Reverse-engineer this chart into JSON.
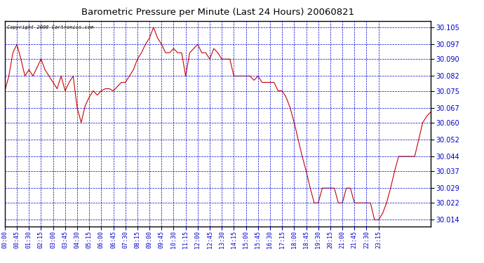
{
  "title": "Barometric Pressure per Minute (Last 24 Hours) 20060821",
  "copyright": "Copyright 2006 Cartronics.com",
  "line_color": "#cc0000",
  "bg_color": "#ffffff",
  "plot_bg_color": "#ffffff",
  "grid_color": "#0000cc",
  "axis_label_color": "#0000cc",
  "title_color": "#000000",
  "yticks": [
    30.014,
    30.022,
    30.029,
    30.037,
    30.044,
    30.052,
    30.06,
    30.067,
    30.075,
    30.082,
    30.09,
    30.097,
    30.105
  ],
  "ylim": [
    30.011,
    30.108
  ],
  "xtick_labels": [
    "00:00",
    "00:45",
    "01:30",
    "02:15",
    "03:00",
    "03:45",
    "04:30",
    "05:15",
    "06:00",
    "06:45",
    "07:30",
    "08:15",
    "09:00",
    "09:45",
    "10:30",
    "11:15",
    "12:00",
    "12:45",
    "13:30",
    "14:15",
    "15:00",
    "15:45",
    "16:30",
    "17:15",
    "18:00",
    "18:45",
    "19:30",
    "20:15",
    "21:00",
    "21:45",
    "22:30",
    "23:15"
  ],
  "pressure_data": [
    [
      0,
      30.075
    ],
    [
      15,
      30.082
    ],
    [
      30,
      30.093
    ],
    [
      45,
      30.097
    ],
    [
      60,
      30.09
    ],
    [
      75,
      30.082
    ],
    [
      90,
      30.085
    ],
    [
      105,
      30.082
    ],
    [
      120,
      30.086
    ],
    [
      135,
      30.09
    ],
    [
      150,
      30.085
    ],
    [
      165,
      30.082
    ],
    [
      180,
      30.079
    ],
    [
      195,
      30.076
    ],
    [
      210,
      30.082
    ],
    [
      225,
      30.075
    ],
    [
      240,
      30.079
    ],
    [
      255,
      30.082
    ],
    [
      270,
      30.067
    ],
    [
      285,
      30.06
    ],
    [
      300,
      30.068
    ],
    [
      315,
      30.072
    ],
    [
      330,
      30.075
    ],
    [
      345,
      30.073
    ],
    [
      360,
      30.075
    ],
    [
      375,
      30.076
    ],
    [
      390,
      30.076
    ],
    [
      405,
      30.075
    ],
    [
      420,
      30.077
    ],
    [
      435,
      30.079
    ],
    [
      450,
      30.079
    ],
    [
      465,
      30.082
    ],
    [
      480,
      30.085
    ],
    [
      495,
      30.09
    ],
    [
      510,
      30.093
    ],
    [
      525,
      30.097
    ],
    [
      540,
      30.1
    ],
    [
      555,
      30.105
    ],
    [
      570,
      30.1
    ],
    [
      585,
      30.097
    ],
    [
      600,
      30.093
    ],
    [
      615,
      30.093
    ],
    [
      630,
      30.095
    ],
    [
      645,
      30.093
    ],
    [
      660,
      30.093
    ],
    [
      675,
      30.082
    ],
    [
      690,
      30.093
    ],
    [
      705,
      30.095
    ],
    [
      720,
      30.097
    ],
    [
      735,
      30.093
    ],
    [
      750,
      30.093
    ],
    [
      765,
      30.09
    ],
    [
      780,
      30.095
    ],
    [
      795,
      30.093
    ],
    [
      810,
      30.09
    ],
    [
      825,
      30.09
    ],
    [
      840,
      30.09
    ],
    [
      855,
      30.082
    ],
    [
      870,
      30.082
    ],
    [
      885,
      30.082
    ],
    [
      900,
      30.082
    ],
    [
      915,
      30.082
    ],
    [
      930,
      30.08
    ],
    [
      945,
      30.082
    ],
    [
      960,
      30.079
    ],
    [
      975,
      30.079
    ],
    [
      990,
      30.079
    ],
    [
      1005,
      30.079
    ],
    [
      1020,
      30.075
    ],
    [
      1035,
      30.075
    ],
    [
      1050,
      30.072
    ],
    [
      1065,
      30.067
    ],
    [
      1080,
      30.06
    ],
    [
      1095,
      30.052
    ],
    [
      1110,
      30.044
    ],
    [
      1125,
      30.037
    ],
    [
      1140,
      30.029
    ],
    [
      1155,
      30.022
    ],
    [
      1170,
      30.022
    ],
    [
      1185,
      30.029
    ],
    [
      1200,
      30.029
    ],
    [
      1215,
      30.029
    ],
    [
      1230,
      30.029
    ],
    [
      1245,
      30.022
    ],
    [
      1260,
      30.022
    ],
    [
      1275,
      30.029
    ],
    [
      1290,
      30.029
    ],
    [
      1305,
      30.022
    ],
    [
      1320,
      30.022
    ],
    [
      1335,
      30.022
    ],
    [
      1350,
      30.022
    ],
    [
      1365,
      30.022
    ],
    [
      1380,
      30.014
    ],
    [
      1395,
      30.014
    ],
    [
      1410,
      30.017
    ],
    [
      1425,
      30.022
    ],
    [
      1440,
      30.029
    ],
    [
      1455,
      30.037
    ],
    [
      1470,
      30.044
    ],
    [
      1485,
      30.044
    ],
    [
      1500,
      30.044
    ],
    [
      1515,
      30.044
    ],
    [
      1530,
      30.044
    ],
    [
      1545,
      30.052
    ],
    [
      1560,
      30.06
    ],
    [
      1575,
      30.063
    ],
    [
      1590,
      30.065
    ]
  ]
}
